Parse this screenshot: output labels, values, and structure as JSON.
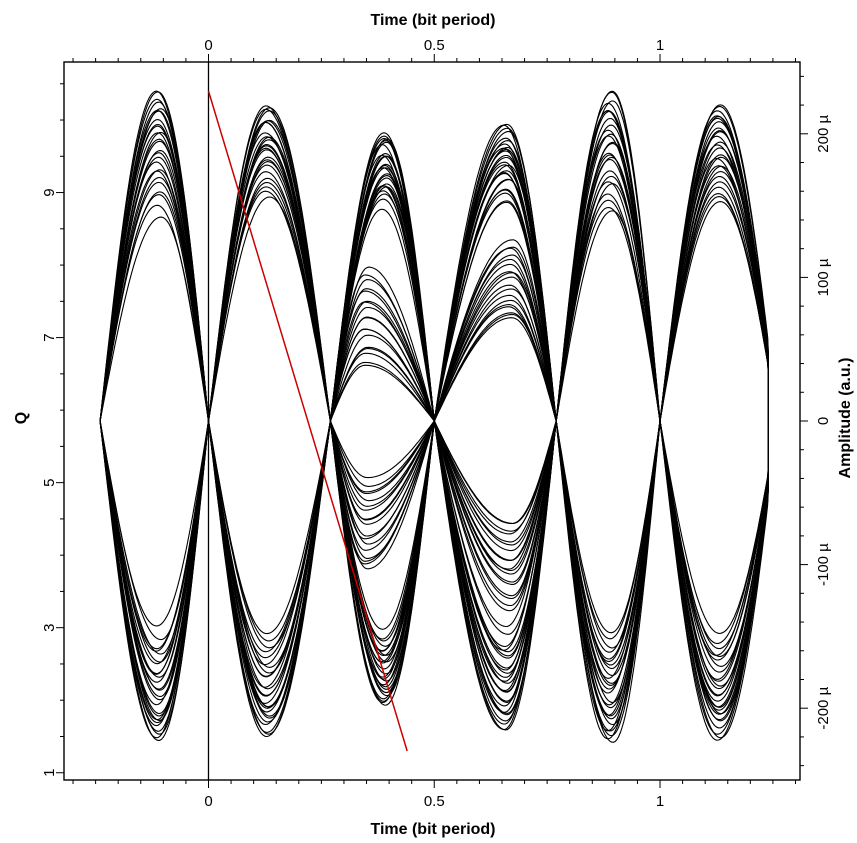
{
  "chart_data": {
    "type": "line",
    "title": "",
    "xlabel_top": "Time (bit period)",
    "xlabel_bottom": "Time (bit period)",
    "ylabel_left": "Q",
    "ylabel_right": "Amplitude (a.u.)",
    "x_top": {
      "lim": [
        -0.32,
        1.31
      ],
      "ticks": [
        0,
        0.5,
        1
      ],
      "tick_labels": [
        "0",
        "0.5",
        "1"
      ]
    },
    "x_bottom": {
      "lim": [
        -0.32,
        1.31
      ],
      "ticks": [
        0,
        0.5,
        1
      ],
      "tick_labels": [
        "0",
        "0.5",
        "1"
      ]
    },
    "y_left": {
      "lim": [
        0.9,
        10.8
      ],
      "ticks": [
        1,
        3,
        5,
        7,
        9
      ],
      "tick_labels": [
        "1",
        "3",
        "5",
        "7",
        "9"
      ]
    },
    "y_right": {
      "lim": [
        -250,
        250
      ],
      "unit": "µ",
      "ticks": [
        -200,
        -100,
        0,
        100,
        200
      ],
      "tick_labels": [
        "-200 µ",
        "-100 µ",
        "0",
        "100 µ",
        "200 µ"
      ]
    },
    "grid": false,
    "legend": "none",
    "colors": {
      "eye": "#000000",
      "q_line": "#cc0000"
    },
    "series": [
      {
        "type": "eye_diagram",
        "axis": "right",
        "x_range": [
          -0.25,
          1.24
        ],
        "crossings": [
          -0.24,
          0.0,
          0.27,
          0.5,
          0.77,
          1.0
        ],
        "upper_peaks": [
          {
            "x": -0.11,
            "outer": 230,
            "inner": 145
          },
          {
            "x": 0.13,
            "outer": 220,
            "inner": 155
          },
          {
            "x": 0.39,
            "outer": 200,
            "inner": 150
          },
          {
            "x": 0.66,
            "outer": 205,
            "inner": 150
          },
          {
            "x": 0.89,
            "outer": 230,
            "inner": 145
          },
          {
            "x": 1.13,
            "outer": 220,
            "inner": 150
          }
        ],
        "lower_peaks": [
          {
            "x": -0.11,
            "outer": -225,
            "inner": -145
          },
          {
            "x": 0.13,
            "outer": -220,
            "inner": -150
          },
          {
            "x": 0.39,
            "outer": -200,
            "inner": -145
          },
          {
            "x": 0.66,
            "outer": -215,
            "inner": -145
          },
          {
            "x": 0.89,
            "outer": -225,
            "inner": -145
          },
          {
            "x": 1.13,
            "outer": -220,
            "inner": -150
          }
        ],
        "middle_eyes": [
          {
            "x": 0.35,
            "upper_outer": 105,
            "upper_inner": 38,
            "lower_outer": -105,
            "lower_inner": -40
          },
          {
            "x": 0.67,
            "upper_outer": 125,
            "upper_inner": 70,
            "lower_outer": -130,
            "lower_inner": -70
          }
        ]
      },
      {
        "type": "line",
        "axis": "left",
        "x": [
          0.0,
          0.44
        ],
        "y": [
          10.4,
          1.3
        ]
      }
    ]
  }
}
